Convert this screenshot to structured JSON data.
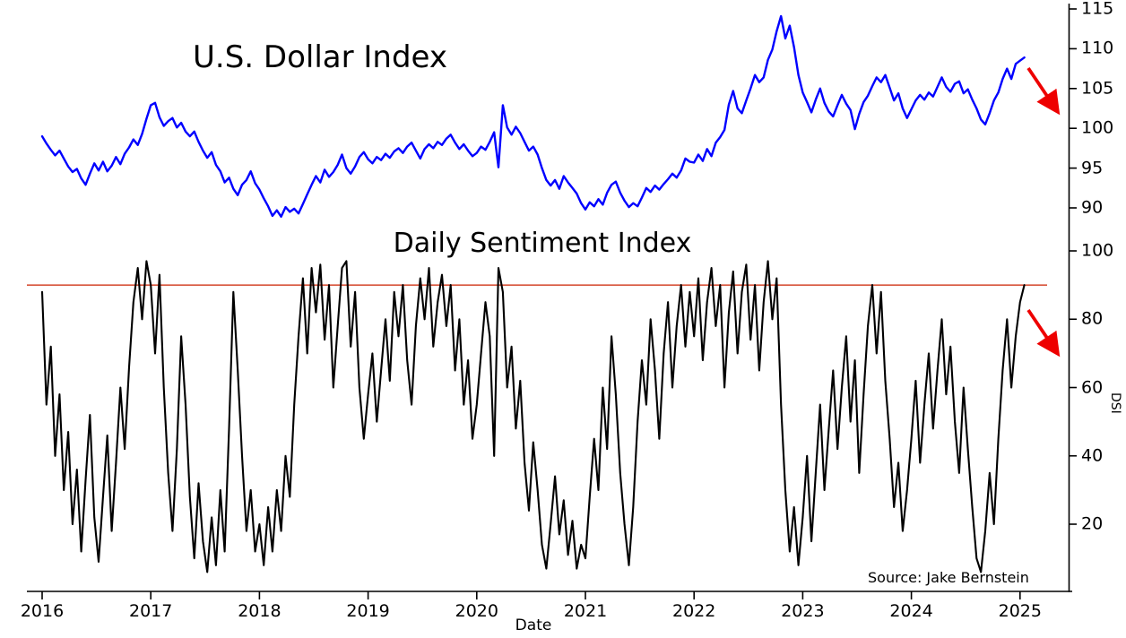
{
  "colors": {
    "usd_line": "#0000ff",
    "dsi_line": "#000000",
    "threshold_line": "#cc2200",
    "arrow": "#ee0000",
    "axis": "#000000"
  },
  "axes": {
    "xlabel": "Date",
    "x_ticks": [
      2016,
      2017,
      2018,
      2019,
      2020,
      2021,
      2022,
      2023,
      2024,
      2025
    ]
  },
  "chart_data": [
    {
      "type": "line",
      "title": "U.S. Dollar Index",
      "legend": "none",
      "grid": false,
      "color": "#0000ff",
      "x_start": 2016.0,
      "x_step": 0.04,
      "x_range": [
        2016.0,
        2025.04
      ],
      "y_ticks": [
        90,
        95,
        100,
        105,
        110,
        115
      ],
      "ylim": [
        88,
        115.6
      ],
      "trend_annotation": "red-down-arrow",
      "values": [
        99.0,
        98.1,
        97.3,
        96.6,
        97.2,
        96.2,
        95.2,
        94.5,
        94.9,
        93.7,
        92.9,
        94.3,
        95.6,
        94.7,
        95.8,
        94.6,
        95.3,
        96.4,
        95.5,
        96.8,
        97.6,
        98.6,
        97.9,
        99.3,
        101.2,
        102.9,
        103.2,
        101.4,
        100.3,
        100.9,
        101.3,
        100.1,
        100.7,
        99.6,
        99.0,
        99.6,
        98.3,
        97.2,
        96.3,
        97.0,
        95.4,
        94.6,
        93.2,
        93.8,
        92.4,
        91.6,
        92.9,
        93.5,
        94.6,
        93.1,
        92.3,
        91.2,
        90.2,
        89.0,
        89.7,
        88.9,
        90.1,
        89.5,
        89.9,
        89.3,
        90.5,
        91.7,
        92.9,
        94.0,
        93.2,
        94.8,
        93.9,
        94.5,
        95.4,
        96.7,
        95.0,
        94.3,
        95.2,
        96.4,
        97.0,
        96.1,
        95.6,
        96.4,
        96.0,
        96.8,
        96.3,
        97.1,
        97.5,
        96.9,
        97.7,
        98.2,
        97.2,
        96.2,
        97.4,
        98.0,
        97.5,
        98.3,
        97.9,
        98.7,
        99.2,
        98.2,
        97.4,
        98.0,
        97.2,
        96.5,
        96.9,
        97.7,
        97.3,
        98.3,
        99.5,
        95.1,
        102.9,
        100.1,
        99.2,
        100.2,
        99.4,
        98.3,
        97.2,
        97.7,
        96.7,
        95.0,
        93.5,
        92.8,
        93.5,
        92.4,
        94.0,
        93.2,
        92.5,
        91.8,
        90.6,
        89.8,
        90.7,
        90.2,
        91.1,
        90.4,
        91.9,
        92.9,
        93.3,
        91.9,
        90.9,
        90.1,
        90.6,
        90.2,
        91.3,
        92.5,
        92.0,
        92.8,
        92.3,
        93.0,
        93.6,
        94.3,
        93.8,
        94.7,
        96.2,
        95.8,
        95.7,
        96.7,
        95.9,
        97.4,
        96.5,
        98.2,
        98.9,
        99.8,
        103.0,
        104.7,
        102.5,
        101.9,
        103.5,
        105.0,
        106.7,
        105.8,
        106.4,
        108.6,
        109.9,
        112.2,
        114.1,
        111.3,
        112.9,
        110.2,
        106.7,
        104.5,
        103.3,
        102.0,
        103.6,
        105.0,
        103.2,
        102.1,
        101.5,
        102.9,
        104.2,
        103.1,
        102.3,
        99.9,
        101.8,
        103.3,
        104.1,
        105.3,
        106.4,
        105.8,
        106.7,
        105.1,
        103.5,
        104.4,
        102.5,
        101.3,
        102.4,
        103.5,
        104.2,
        103.6,
        104.5,
        104.0,
        105.2,
        106.4,
        105.2,
        104.6,
        105.6,
        105.9,
        104.4,
        104.9,
        103.6,
        102.5,
        101.1,
        100.5,
        101.9,
        103.5,
        104.5,
        106.2,
        107.5,
        106.2,
        108.1,
        108.5,
        108.9
      ]
    },
    {
      "type": "line",
      "title": "Daily Sentiment Index",
      "ylabel": "DSI",
      "annotation": "Source: Jake Bernstein",
      "legend": "none",
      "grid": false,
      "color": "#000000",
      "x_start": 2016.0,
      "x_step": 0.04,
      "x_range": [
        2016.0,
        2025.04
      ],
      "y_ticks": [
        20,
        40,
        60,
        80,
        100
      ],
      "ylim": [
        1,
        102.5
      ],
      "threshold": 90,
      "trend_annotation": "red-down-arrow",
      "values": [
        88,
        55,
        72,
        40,
        58,
        30,
        47,
        20,
        36,
        12,
        33,
        52,
        22,
        9,
        28,
        46,
        18,
        38,
        60,
        42,
        66,
        85,
        95,
        80,
        97,
        90,
        70,
        93,
        60,
        35,
        18,
        42,
        75,
        55,
        28,
        10,
        32,
        15,
        6,
        22,
        8,
        30,
        12,
        48,
        88,
        65,
        40,
        18,
        30,
        12,
        20,
        8,
        25,
        12,
        30,
        18,
        40,
        28,
        55,
        75,
        92,
        70,
        95,
        82,
        96,
        74,
        90,
        60,
        78,
        95,
        97,
        72,
        88,
        60,
        45,
        58,
        70,
        50,
        65,
        80,
        62,
        88,
        75,
        90,
        68,
        55,
        78,
        92,
        80,
        95,
        72,
        85,
        93,
        78,
        90,
        65,
        80,
        55,
        68,
        45,
        55,
        70,
        85,
        75,
        40,
        95,
        88,
        60,
        72,
        48,
        62,
        38,
        24,
        44,
        30,
        14,
        7,
        20,
        34,
        17,
        27,
        11,
        21,
        7,
        14,
        10,
        28,
        45,
        30,
        60,
        42,
        75,
        58,
        35,
        20,
        8,
        25,
        50,
        68,
        55,
        80,
        65,
        45,
        70,
        85,
        60,
        78,
        90,
        72,
        88,
        75,
        92,
        68,
        85,
        95,
        78,
        90,
        60,
        82,
        94,
        70,
        88,
        96,
        74,
        90,
        65,
        85,
        97,
        80,
        92,
        55,
        30,
        12,
        25,
        8,
        22,
        40,
        15,
        35,
        55,
        30,
        48,
        65,
        42,
        60,
        75,
        50,
        68,
        35,
        58,
        78,
        90,
        70,
        88,
        62,
        45,
        25,
        38,
        18,
        30,
        45,
        62,
        38,
        55,
        70,
        48,
        65,
        80,
        58,
        72,
        50,
        35,
        60,
        42,
        25,
        10,
        6,
        18,
        35,
        20,
        45,
        65,
        80,
        60,
        75,
        85,
        90
      ]
    }
  ]
}
